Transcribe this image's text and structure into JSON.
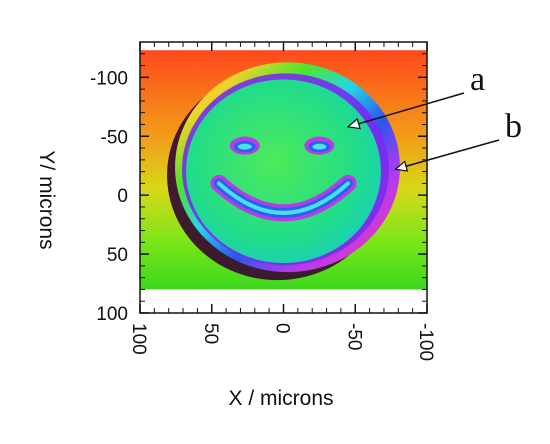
{
  "chart_data": {
    "type": "heatmap",
    "title": "",
    "xlabel": "X / microns",
    "ylabel": "Y/ microns",
    "xlim": [
      100,
      -100
    ],
    "ylim": [
      -130,
      100
    ],
    "x_ticks": [
      {
        "value": 100,
        "label": "100"
      },
      {
        "value": 50,
        "label": "50"
      },
      {
        "value": 0,
        "label": "0"
      },
      {
        "value": -50,
        "label": "-50"
      },
      {
        "value": -100,
        "label": "-100"
      }
    ],
    "y_ticks": [
      {
        "value": -100,
        "label": "-100"
      },
      {
        "value": -50,
        "label": "-50"
      },
      {
        "value": 0,
        "label": "0"
      },
      {
        "value": 50,
        "label": "50"
      },
      {
        "value": 100,
        "label": "100"
      }
    ],
    "annotations": [
      {
        "label": "a",
        "target": "smiley face surface",
        "x": -45,
        "y": -58
      },
      {
        "label": "b",
        "target": "rim of the face",
        "x": -78,
        "y": -22
      }
    ],
    "colormap": "rainbow height map",
    "colors": {
      "background_top": "#ff5a1e",
      "background_mid": "#f2b21a",
      "background_bottom": "#5ee21a",
      "face_fill": "#2fe07a",
      "shadow": "#3a1030",
      "axis": "#111111"
    },
    "grid": false
  }
}
